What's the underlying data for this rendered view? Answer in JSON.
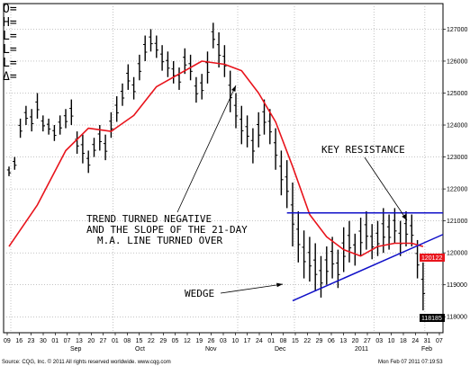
{
  "chart_data": {
    "type": "ohlc",
    "readout": [
      "O=",
      "H=",
      "L=",
      "L=",
      "L=",
      "Δ="
    ],
    "x_month_labels": [
      "Sep",
      "Oct",
      "Nov",
      "Dec",
      "2011",
      "Feb"
    ],
    "x_day_labels": [
      "09",
      "16",
      "23",
      "30",
      "01",
      "07",
      "13",
      "20",
      "27",
      "01",
      "08",
      "15",
      "22",
      "29",
      "05",
      "12",
      "19",
      "26",
      "03",
      "10",
      "17",
      "24",
      "01",
      "08",
      "15",
      "22",
      "29",
      "06",
      "13",
      "20",
      "27",
      "03",
      "10",
      "18",
      "24",
      "31",
      "07"
    ],
    "y_ticks": [
      127000,
      126000,
      125000,
      124000,
      123000,
      122000,
      121000,
      120000,
      119000,
      118000
    ],
    "y_tick_labels": [
      "127000",
      "126000",
      "125000",
      "124000",
      "123000",
      "122000",
      "121000",
      "120000",
      "119000",
      "118000"
    ],
    "ylim": [
      117500,
      127800
    ],
    "bars": [
      {
        "h": 122700,
        "l": 122400
      },
      {
        "h": 123000,
        "l": 122600
      },
      {
        "h": 124200,
        "l": 123600
      },
      {
        "h": 124600,
        "l": 124000
      },
      {
        "h": 124500,
        "l": 123800
      },
      {
        "h": 125000,
        "l": 124200
      },
      {
        "h": 124300,
        "l": 123800
      },
      {
        "h": 124200,
        "l": 123700
      },
      {
        "h": 124000,
        "l": 123500
      },
      {
        "h": 124300,
        "l": 123700
      },
      {
        "h": 124500,
        "l": 123900
      },
      {
        "h": 124800,
        "l": 124000
      },
      {
        "h": 123800,
        "l": 123100
      },
      {
        "h": 123700,
        "l": 122800
      },
      {
        "h": 123200,
        "l": 122500
      },
      {
        "h": 123600,
        "l": 123000
      },
      {
        "h": 124000,
        "l": 123200
      },
      {
        "h": 123700,
        "l": 122900
      },
      {
        "h": 124400,
        "l": 123600
      },
      {
        "h": 124900,
        "l": 124100
      },
      {
        "h": 125300,
        "l": 124600
      },
      {
        "h": 125900,
        "l": 125100
      },
      {
        "h": 125500,
        "l": 124800
      },
      {
        "h": 126200,
        "l": 125400
      },
      {
        "h": 126800,
        "l": 126000
      },
      {
        "h": 127000,
        "l": 126300
      },
      {
        "h": 126800,
        "l": 126100
      },
      {
        "h": 126500,
        "l": 125700
      },
      {
        "h": 126300,
        "l": 125500
      },
      {
        "h": 126000,
        "l": 125300
      },
      {
        "h": 125800,
        "l": 125100
      },
      {
        "h": 126400,
        "l": 125600
      },
      {
        "h": 126200,
        "l": 125400
      },
      {
        "h": 125500,
        "l": 124700
      },
      {
        "h": 125600,
        "l": 124800
      },
      {
        "h": 126300,
        "l": 125300
      },
      {
        "h": 127200,
        "l": 126400
      },
      {
        "h": 126900,
        "l": 125800
      },
      {
        "h": 126500,
        "l": 125500
      },
      {
        "h": 125700,
        "l": 124400
      },
      {
        "h": 125000,
        "l": 123900
      },
      {
        "h": 124600,
        "l": 123400
      },
      {
        "h": 124300,
        "l": 123300
      },
      {
        "h": 123900,
        "l": 122800
      },
      {
        "h": 124400,
        "l": 123300
      },
      {
        "h": 124800,
        "l": 123700
      },
      {
        "h": 124500,
        "l": 123400
      },
      {
        "h": 123900,
        "l": 122600
      },
      {
        "h": 123200,
        "l": 121800
      },
      {
        "h": 122900,
        "l": 121400
      },
      {
        "h": 122200,
        "l": 120200
      },
      {
        "h": 121300,
        "l": 119700
      },
      {
        "h": 120700,
        "l": 119200
      },
      {
        "h": 120500,
        "l": 119100
      },
      {
        "h": 120300,
        "l": 118800
      },
      {
        "h": 119900,
        "l": 118600
      },
      {
        "h": 120200,
        "l": 119000
      },
      {
        "h": 120500,
        "l": 119200
      },
      {
        "h": 120100,
        "l": 118900
      },
      {
        "h": 120800,
        "l": 119400
      },
      {
        "h": 121000,
        "l": 119700
      },
      {
        "h": 120600,
        "l": 119600
      },
      {
        "h": 121100,
        "l": 119900
      },
      {
        "h": 121300,
        "l": 120100
      },
      {
        "h": 120900,
        "l": 119800
      },
      {
        "h": 121000,
        "l": 119900
      },
      {
        "h": 121400,
        "l": 120000
      },
      {
        "h": 121200,
        "l": 120100
      },
      {
        "h": 121400,
        "l": 120300
      },
      {
        "h": 121000,
        "l": 119900
      },
      {
        "h": 121300,
        "l": 120200
      },
      {
        "h": 121200,
        "l": 120200
      },
      {
        "h": 120400,
        "l": 119200
      },
      {
        "h": 119700,
        "l": 118200
      }
    ],
    "ma21": [
      {
        "i": 0,
        "v": 120200
      },
      {
        "i": 5,
        "v": 121500
      },
      {
        "i": 10,
        "v": 123200
      },
      {
        "i": 14,
        "v": 123900
      },
      {
        "i": 18,
        "v": 123800
      },
      {
        "i": 22,
        "v": 124300
      },
      {
        "i": 26,
        "v": 125200
      },
      {
        "i": 30,
        "v": 125600
      },
      {
        "i": 34,
        "v": 126000
      },
      {
        "i": 38,
        "v": 125900
      },
      {
        "i": 41,
        "v": 125700
      },
      {
        "i": 44,
        "v": 125000
      },
      {
        "i": 47,
        "v": 124100
      },
      {
        "i": 50,
        "v": 122700
      },
      {
        "i": 53,
        "v": 121200
      },
      {
        "i": 56,
        "v": 120500
      },
      {
        "i": 59,
        "v": 120100
      },
      {
        "i": 62,
        "v": 119900
      },
      {
        "i": 65,
        "v": 120200
      },
      {
        "i": 68,
        "v": 120300
      },
      {
        "i": 71,
        "v": 120300
      },
      {
        "i": 73,
        "v": 120200
      }
    ],
    "resistance_level": 121250,
    "wedge_line": [
      {
        "i": 50,
        "v": 118500
      },
      {
        "i": 73,
        "v": 120300
      }
    ],
    "last_price": "120122",
    "last_low": "118185",
    "annotations": {
      "trend_lines": [
        "TREND TURNED NEGATIVE",
        "AND THE SLOPE OF THE 21-DAY",
        "M.A. LINE TURNED OVER"
      ],
      "resistance": "KEY RESISTANCE",
      "wedge": "WEDGE"
    },
    "footer_left": "Source: CQG, Inc. © 2011 All rights reserved worldwide. www.cqg.com",
    "footer_right": "Mon Feb 07 2011 07:19:53",
    "colors": {
      "bars": "#000000",
      "ma": "#e8141c",
      "trend": "#1010c8",
      "price_tag": "#e8141c",
      "low_tag": "#000000",
      "grid": "#888888"
    }
  }
}
